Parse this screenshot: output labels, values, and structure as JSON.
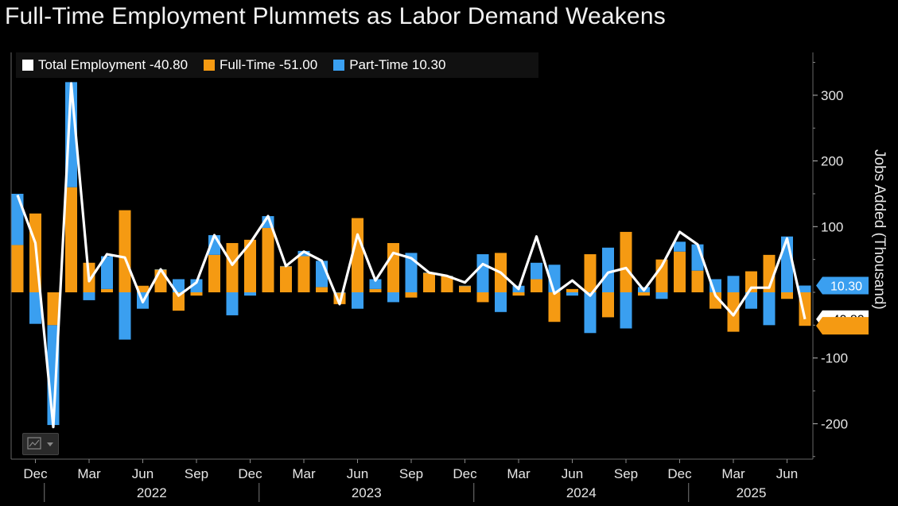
{
  "title": "Full-Time Employment Plummets as Labor Demand Weakens",
  "legend": [
    {
      "label": "Total Employment -40.80",
      "color": "#ffffff"
    },
    {
      "label": "Full-Time -51.00",
      "color": "#f59a12"
    },
    {
      "label": "Part-Time 10.30",
      "color": "#3a9ff0"
    }
  ],
  "value_tags": [
    {
      "label": "10.30",
      "color": "#3a9ff0",
      "text_color": "#ffffff",
      "value": 10.3
    },
    {
      "label": "-40.80",
      "color": "#ffffff",
      "text_color": "#000000",
      "value": -40.8
    },
    {
      "label": "",
      "color": "#f59a12",
      "text_color": "#000000",
      "value": -51.0
    }
  ],
  "chart_data": {
    "type": "bar",
    "stacked": true,
    "ylabel": "Jobs Added (Thousand)",
    "ylim": [
      -260,
      360
    ],
    "yticks": [
      300,
      200,
      100,
      -100,
      -200
    ],
    "x_month_labels": [
      "Dec",
      "Mar",
      "Jun",
      "Sep",
      "Dec",
      "Mar",
      "Jun",
      "Sep",
      "Dec",
      "Mar",
      "Jun",
      "Sep",
      "Dec",
      "Mar",
      "Jun"
    ],
    "x_year_labels": [
      "2022",
      "2023",
      "2024",
      "2025"
    ],
    "months": [
      "2021-11",
      "2021-12",
      "2022-01",
      "2022-02",
      "2022-03",
      "2022-04",
      "2022-05",
      "2022-06",
      "2022-07",
      "2022-08",
      "2022-09",
      "2022-10",
      "2022-11",
      "2022-12",
      "2023-01",
      "2023-02",
      "2023-03",
      "2023-04",
      "2023-05",
      "2023-06",
      "2023-07",
      "2023-08",
      "2023-09",
      "2023-10",
      "2023-11",
      "2023-12",
      "2024-01",
      "2024-02",
      "2024-03",
      "2024-04",
      "2024-05",
      "2024-06",
      "2024-07",
      "2024-08",
      "2024-09",
      "2024-10",
      "2024-11",
      "2024-12",
      "2025-01",
      "2025-02",
      "2025-03",
      "2025-04",
      "2025-05",
      "2025-06",
      "2025-07"
    ],
    "series": [
      {
        "name": "Full-Time -51.00",
        "color": "#f59a12",
        "values": [
          72,
          120,
          -50,
          160,
          45,
          5,
          125,
          10,
          35,
          -28,
          -5,
          57,
          75,
          80,
          98,
          40,
          55,
          8,
          -18,
          113,
          5,
          75,
          -8,
          30,
          25,
          10,
          -15,
          60,
          -5,
          20,
          -45,
          5,
          58,
          -38,
          92,
          -5,
          50,
          62,
          33,
          -25,
          -60,
          32,
          57,
          -10,
          -51
        ]
      },
      {
        "name": "Part-Time 10.30",
        "color": "#3a9ff0",
        "values": [
          78,
          -48,
          -152,
          160,
          -12,
          50,
          -72,
          -25,
          0,
          20,
          20,
          30,
          -35,
          -5,
          18,
          0,
          8,
          40,
          0,
          -25,
          15,
          -15,
          60,
          0,
          0,
          0,
          58,
          -30,
          10,
          25,
          42,
          -5,
          -62,
          68,
          -55,
          8,
          -10,
          15,
          40,
          20,
          25,
          -25,
          -50,
          85,
          10.3
        ]
      },
      {
        "name": "Total Employment -40.80",
        "color": "#ffffff",
        "type": "line",
        "values": [
          148,
          75,
          -205,
          318,
          17,
          58,
          53,
          -15,
          35,
          -5,
          15,
          87,
          42,
          75,
          116,
          40,
          62,
          48,
          -18,
          88,
          18,
          60,
          52,
          30,
          25,
          15,
          43,
          30,
          5,
          85,
          -2,
          18,
          -5,
          30,
          37,
          3,
          40,
          92,
          73,
          -5,
          -35,
          7,
          7,
          82,
          -40.8
        ]
      }
    ]
  }
}
